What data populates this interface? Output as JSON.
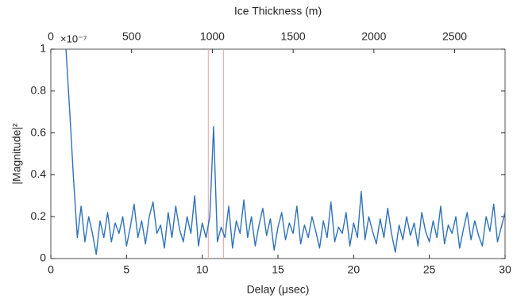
{
  "chart_data": {
    "type": "line",
    "xlabel": "Delay (μsec)",
    "ylabel": "|Magnitude|²",
    "x2label": "Ice Thickness (m)",
    "y_scale_label": "×10⁻⁷",
    "xlim": [
      0,
      30
    ],
    "xticks": [
      0,
      5,
      10,
      15,
      20,
      25,
      30
    ],
    "ylim": [
      0,
      1
    ],
    "yticks": [
      0,
      0.2,
      0.4,
      0.6,
      0.8,
      1
    ],
    "x2lim": [
      0,
      2812
    ],
    "x2ticks": [
      0,
      500,
      1000,
      1500,
      2000,
      2500
    ],
    "grid": false,
    "vlines": {
      "color": "#e6a3a3",
      "values": [
        10.4,
        11.4
      ]
    },
    "series": [
      {
        "color": "#2f72b8",
        "x": [
          1,
          1.25,
          1.5,
          1.75,
          2,
          2.25,
          2.5,
          2.75,
          3,
          3.25,
          3.5,
          3.75,
          4,
          4.25,
          4.5,
          4.75,
          5,
          5.25,
          5.5,
          5.75,
          6,
          6.25,
          6.5,
          6.75,
          7,
          7.25,
          7.5,
          7.75,
          8,
          8.25,
          8.5,
          8.75,
          9,
          9.25,
          9.5,
          9.75,
          10,
          10.25,
          10.5,
          10.75,
          11,
          11.25,
          11.5,
          11.75,
          12,
          12.25,
          12.5,
          12.75,
          13,
          13.25,
          13.5,
          13.75,
          14,
          14.25,
          14.5,
          14.75,
          15,
          15.25,
          15.5,
          15.75,
          16,
          16.25,
          16.5,
          16.75,
          17,
          17.25,
          17.5,
          17.75,
          18,
          18.25,
          18.5,
          18.75,
          19,
          19.25,
          19.5,
          19.75,
          20,
          20.25,
          20.5,
          20.75,
          21,
          21.25,
          21.5,
          21.75,
          22,
          22.25,
          22.5,
          22.75,
          23,
          23.25,
          23.5,
          23.75,
          24,
          24.25,
          24.5,
          24.75,
          25,
          25.25,
          25.5,
          25.75,
          26,
          26.25,
          26.5,
          26.75,
          27,
          27.25,
          27.5,
          27.75,
          28,
          28.25,
          28.5,
          28.75,
          29,
          29.25,
          29.5,
          29.75,
          30
        ],
        "values": [
          1.0,
          0.7,
          0.38,
          0.1,
          0.25,
          0.08,
          0.2,
          0.12,
          0.02,
          0.18,
          0.1,
          0.22,
          0.08,
          0.17,
          0.12,
          0.2,
          0.06,
          0.15,
          0.26,
          0.1,
          0.18,
          0.07,
          0.2,
          0.27,
          0.12,
          0.16,
          0.05,
          0.22,
          0.1,
          0.25,
          0.14,
          0.08,
          0.2,
          0.12,
          0.3,
          0.06,
          0.17,
          0.1,
          0.2,
          0.63,
          0.08,
          0.15,
          0.1,
          0.25,
          0.05,
          0.18,
          0.12,
          0.28,
          0.1,
          0.2,
          0.06,
          0.16,
          0.24,
          0.11,
          0.19,
          0.04,
          0.15,
          0.22,
          0.09,
          0.17,
          0.12,
          0.25,
          0.07,
          0.16,
          0.1,
          0.2,
          0.13,
          0.05,
          0.18,
          0.1,
          0.27,
          0.08,
          0.15,
          0.12,
          0.22,
          0.06,
          0.17,
          0.1,
          0.32,
          0.09,
          0.2,
          0.13,
          0.07,
          0.19,
          0.1,
          0.24,
          0.12,
          0.03,
          0.16,
          0.09,
          0.2,
          0.11,
          0.17,
          0.06,
          0.22,
          0.13,
          0.08,
          0.18,
          0.1,
          0.25,
          0.07,
          0.16,
          0.12,
          0.2,
          0.05,
          0.14,
          0.22,
          0.09,
          0.18,
          0.11,
          0.06,
          0.2,
          0.13,
          0.26,
          0.08,
          0.15,
          0.22
        ]
      }
    ]
  }
}
